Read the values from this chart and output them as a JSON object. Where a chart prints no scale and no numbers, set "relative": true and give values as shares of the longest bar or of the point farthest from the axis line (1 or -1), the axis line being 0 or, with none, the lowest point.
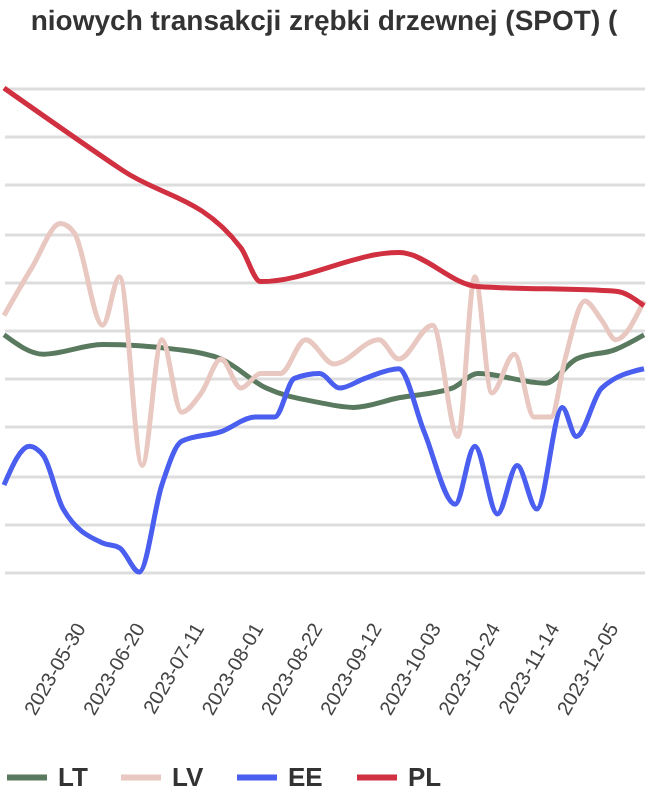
{
  "chart_data": {
    "type": "line",
    "title": "niowych transakcji zrębki drzewnej (SPOT) (",
    "relative": true,
    "grid": "y",
    "legend": "bottom",
    "line_style": "solid",
    "marker": "none",
    "tick_labels": "x",
    "xlim": [
      "2023-05-03",
      "2023-12-16"
    ],
    "xticks": [
      "2023-05-30",
      "2023-06-20",
      "2023-07-11",
      "2023-08-01",
      "2023-08-22",
      "2023-09-12",
      "2023-10-03",
      "2023-10-24",
      "2023-11-14",
      "2023-12-05"
    ],
    "series": [
      {
        "name": "LT",
        "color": "#5a7a60",
        "x": [
          "2023-05-03",
          "2023-05-17",
          "2023-06-07",
          "2023-07-03",
          "2023-07-19",
          "2023-08-04",
          "2023-08-23",
          "2023-09-04",
          "2023-09-20",
          "2023-10-09",
          "2023-10-18",
          "2023-11-11",
          "2023-11-22",
          "2023-12-06",
          "2023-12-16"
        ],
        "values": [
          0.49,
          0.45,
          0.47,
          0.46,
          0.44,
          0.38,
          0.35,
          0.34,
          0.36,
          0.38,
          0.41,
          0.39,
          0.44,
          0.46,
          0.49
        ]
      },
      {
        "name": "LV",
        "color": "#e8c8c0",
        "x": [
          "2023-05-03",
          "2023-05-13",
          "2023-05-23",
          "2023-05-28",
          "2023-06-07",
          "2023-06-13",
          "2023-06-21",
          "2023-06-28",
          "2023-07-05",
          "2023-07-12",
          "2023-07-19",
          "2023-07-26",
          "2023-08-02",
          "2023-08-09",
          "2023-08-18",
          "2023-08-28",
          "2023-09-13",
          "2023-09-20",
          "2023-10-02",
          "2023-10-11",
          "2023-10-17",
          "2023-10-23",
          "2023-10-31",
          "2023-11-07",
          "2023-11-13",
          "2023-11-18",
          "2023-11-25",
          "2023-12-01",
          "2023-12-06",
          "2023-12-16"
        ],
        "values": [
          0.53,
          0.63,
          0.72,
          0.7,
          0.51,
          0.61,
          0.22,
          0.48,
          0.33,
          0.37,
          0.44,
          0.38,
          0.41,
          0.41,
          0.48,
          0.43,
          0.48,
          0.44,
          0.51,
          0.28,
          0.61,
          0.37,
          0.45,
          0.32,
          0.32,
          0.44,
          0.56,
          0.52,
          0.48,
          0.56
        ]
      },
      {
        "name": "EE",
        "color": "#4a5ef0",
        "x": [
          "2023-05-03",
          "2023-05-12",
          "2023-05-17",
          "2023-05-24",
          "2023-06-07",
          "2023-06-13",
          "2023-06-20",
          "2023-06-28",
          "2023-07-05",
          "2023-07-19",
          "2023-07-31",
          "2023-08-07",
          "2023-08-14",
          "2023-08-23",
          "2023-08-30",
          "2023-09-08",
          "2023-09-20",
          "2023-09-29",
          "2023-10-10",
          "2023-10-17",
          "2023-10-25",
          "2023-11-01",
          "2023-11-08",
          "2023-11-17",
          "2023-11-22",
          "2023-12-01",
          "2023-12-16"
        ],
        "values": [
          0.18,
          0.26,
          0.24,
          0.13,
          0.06,
          0.05,
          0.0,
          0.18,
          0.27,
          0.29,
          0.32,
          0.32,
          0.4,
          0.41,
          0.38,
          0.4,
          0.42,
          0.29,
          0.14,
          0.26,
          0.12,
          0.22,
          0.13,
          0.34,
          0.28,
          0.38,
          0.42
        ]
      },
      {
        "name": "PL",
        "color": "#d03040",
        "x": [
          "2023-05-03",
          "2023-06-14",
          "2023-07-26",
          "2023-08-02",
          "2023-09-20",
          "2023-10-18",
          "2023-12-06",
          "2023-12-16"
        ],
        "values": [
          1.0,
          0.83,
          0.67,
          0.6,
          0.66,
          0.59,
          0.58,
          0.55
        ]
      }
    ]
  }
}
